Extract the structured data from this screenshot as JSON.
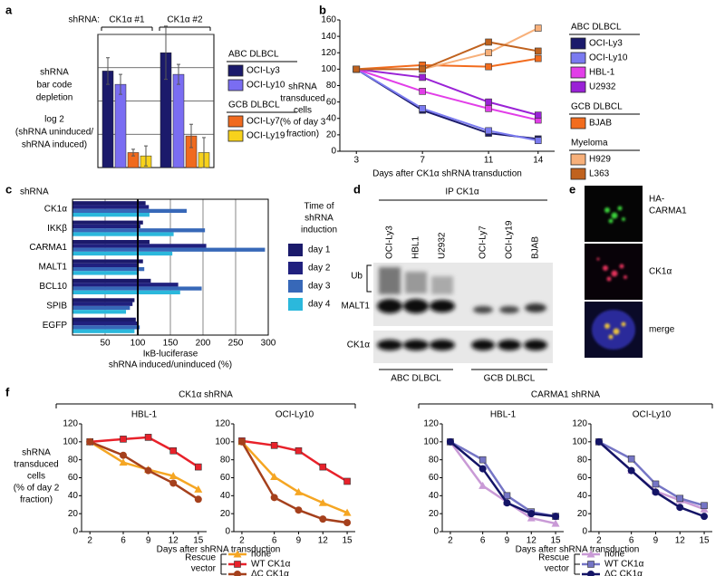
{
  "panel_labels": [
    "a",
    "b",
    "c",
    "d",
    "e",
    "f"
  ],
  "chart_data": [
    {
      "type": "bar",
      "group_header": "shRNA:",
      "categories": [
        "CK1α #1",
        "CK1α #2"
      ],
      "ylabel_lines": [
        "shRNA",
        "bar code",
        "depletion",
        "log 2",
        "(shRNA uninduced/",
        "shRNA induced)"
      ],
      "ylim": [
        0,
        4
      ],
      "gridlines": [
        1,
        2,
        3,
        4
      ],
      "series_groups": [
        {
          "title": "ABC DLBCL",
          "series": [
            {
              "name": "OCI-Ly3",
              "color": "#1b1a6b",
              "values": [
                2.9,
                3.45
              ],
              "errors": [
                0.4,
                0.8
              ]
            },
            {
              "name": "OCI-Ly10",
              "color": "#7a6df2",
              "values": [
                2.5,
                2.8
              ],
              "errors": [
                0.3,
                0.3
              ]
            }
          ]
        },
        {
          "title": "GCB DLBCL",
          "series": [
            {
              "name": "OCI-Ly7",
              "color": "#f06a1e",
              "values": [
                0.45,
                0.95
              ],
              "errors": [
                0.1,
                0.35
              ]
            },
            {
              "name": "OCI-Ly19",
              "color": "#f7d21c",
              "values": [
                0.35,
                0.45
              ],
              "errors": [
                0.3,
                0.45
              ]
            }
          ]
        }
      ]
    },
    {
      "type": "line",
      "x": [
        3,
        7,
        11,
        14
      ],
      "xlim": [
        2,
        15
      ],
      "xticks": [
        3,
        7,
        11,
        14
      ],
      "ylim": [
        0,
        160
      ],
      "yticks": [
        0,
        20,
        40,
        60,
        80,
        100,
        120,
        140,
        160
      ],
      "ylabel_lines": [
        "shRNA",
        "transduced",
        "cells",
        "(% of day 3",
        "fraction)"
      ],
      "xlabel": "Days after CK1α shRNA transduction",
      "series_groups": [
        {
          "title": "ABC DLBCL",
          "series": [
            {
              "name": "OCI-Ly3",
              "color": "#1b1a6b",
              "marker": "square",
              "values": [
                100,
                50,
                22,
                15
              ]
            },
            {
              "name": "OCI-Ly10",
              "color": "#7a7af0",
              "marker": "square",
              "values": [
                100,
                52,
                25,
                13
              ]
            },
            {
              "name": "HBL-1",
              "color": "#e23ee8",
              "marker": "square",
              "values": [
                100,
                73,
                52,
                38
              ]
            },
            {
              "name": "U2932",
              "color": "#9a22d6",
              "marker": "square",
              "values": [
                100,
                90,
                60,
                44
              ]
            }
          ]
        },
        {
          "title": "GCB DLBCL",
          "series": [
            {
              "name": "BJAB",
              "color": "#f26c1e",
              "marker": "square",
              "values": [
                100,
                105,
                103,
                113
              ]
            }
          ]
        },
        {
          "title": "Myeloma",
          "series": [
            {
              "name": "H929",
              "color": "#f7b07a",
              "marker": "square",
              "values": [
                100,
                100,
                120,
                150
              ]
            },
            {
              "name": "L363",
              "color": "#c0621e",
              "marker": "square",
              "values": [
                100,
                100,
                133,
                122
              ]
            }
          ]
        }
      ]
    },
    {
      "type": "bar",
      "orientation": "horizontal",
      "column_header": "shRNA",
      "categories": [
        "CK1α",
        "IKKβ",
        "CARMA1",
        "MALT1",
        "BCL10",
        "SPIB",
        "EGFP"
      ],
      "xlim": [
        0,
        300
      ],
      "xticks": [
        50,
        100,
        150,
        200,
        250,
        300
      ],
      "grid": true,
      "reference_line": 100,
      "xlabel_lines": [
        "IκB-luciferase",
        "shRNA induced/uninduced (%)"
      ],
      "legend_title_lines": [
        "Time of",
        "shRNA",
        "induction"
      ],
      "series": [
        {
          "name": "day 1",
          "color": "#1b1a6b",
          "values": [
            112,
            108,
            118,
            108,
            120,
            95,
            97
          ]
        },
        {
          "name": "day 2",
          "color": "#20207e",
          "values": [
            117,
            104,
            205,
            100,
            162,
            92,
            100
          ]
        },
        {
          "name": "day 3",
          "color": "#3768b8",
          "values": [
            175,
            203,
            295,
            110,
            198,
            88,
            103
          ]
        },
        {
          "name": "day 4",
          "color": "#2bb8dc",
          "values": [
            118,
            155,
            153,
            100,
            165,
            82,
            95
          ]
        }
      ]
    },
    {
      "type": "line",
      "title": "HBL-1",
      "x": [
        2,
        6,
        9,
        12,
        15
      ],
      "xlim": [
        1,
        16
      ],
      "xticks": [
        2,
        6,
        9,
        12,
        15
      ],
      "ylim": [
        0,
        120
      ],
      "yticks": [
        0,
        20,
        40,
        60,
        80,
        100,
        120
      ],
      "ylabel_lines": [
        "shRNA",
        "transduced",
        "cells",
        "(% of day 2",
        "fraction)"
      ],
      "series": [
        {
          "name": "none",
          "color": "#f5a623",
          "marker": "triangle",
          "values": [
            100,
            77,
            69,
            62,
            47
          ]
        },
        {
          "name": "WT CK1α",
          "color": "#e8212a",
          "marker": "square",
          "values": [
            100,
            103,
            105,
            90,
            72
          ]
        },
        {
          "name": "ΔC CK1α",
          "color": "#a5401c",
          "marker": "circle",
          "values": [
            100,
            85,
            68,
            54,
            36
          ]
        }
      ]
    },
    {
      "type": "line",
      "title": "OCI-Ly10",
      "x": [
        2,
        6,
        9,
        12,
        15
      ],
      "xlim": [
        1,
        16
      ],
      "xticks": [
        2,
        6,
        9,
        12,
        15
      ],
      "ylim": [
        0,
        120
      ],
      "yticks": [
        0,
        20,
        40,
        60,
        80,
        100,
        120
      ],
      "series": [
        {
          "name": "none",
          "color": "#f5a623",
          "marker": "triangle",
          "values": [
            100,
            61,
            44,
            32,
            21
          ]
        },
        {
          "name": "WT CK1α",
          "color": "#e8212a",
          "marker": "square",
          "values": [
            101,
            96,
            90,
            72,
            56
          ]
        },
        {
          "name": "ΔC CK1α",
          "color": "#a5401c",
          "marker": "circle",
          "values": [
            100,
            38,
            24,
            14,
            10
          ]
        }
      ]
    },
    {
      "type": "line",
      "title": "HBL-1",
      "x": [
        2,
        6,
        9,
        12,
        15
      ],
      "xlim": [
        1,
        16
      ],
      "xticks": [
        2,
        6,
        9,
        12,
        15
      ],
      "ylim": [
        0,
        120
      ],
      "yticks": [
        0,
        20,
        40,
        60,
        80,
        100,
        120
      ],
      "series": [
        {
          "name": "none",
          "color": "#c99ad6",
          "marker": "triangle",
          "values": [
            100,
            51,
            33,
            15,
            9
          ]
        },
        {
          "name": "WT CK1α",
          "color": "#7575c5",
          "marker": "square",
          "values": [
            100,
            80,
            40,
            22,
            17
          ]
        },
        {
          "name": "ΔC CK1α",
          "color": "#141466",
          "marker": "circle",
          "values": [
            100,
            70,
            32,
            20,
            17
          ]
        }
      ]
    },
    {
      "type": "line",
      "title": "OCI-Ly10",
      "x": [
        2,
        6,
        9,
        12,
        15
      ],
      "xlim": [
        1,
        16
      ],
      "xticks": [
        2,
        6,
        9,
        12,
        15
      ],
      "ylim": [
        0,
        120
      ],
      "yticks": [
        0,
        20,
        40,
        60,
        80,
        100,
        120
      ],
      "series": [
        {
          "name": "none",
          "color": "#c99ad6",
          "marker": "triangle",
          "values": [
            100,
            68,
            45,
            35,
            25
          ]
        },
        {
          "name": "WT CK1α",
          "color": "#7575c5",
          "marker": "square",
          "values": [
            100,
            81,
            53,
            37,
            29
          ]
        },
        {
          "name": "ΔC CK1α",
          "color": "#141466",
          "marker": "circle",
          "values": [
            100,
            68,
            44,
            27,
            17
          ]
        }
      ]
    }
  ],
  "f_groups": [
    {
      "title": "CK1α shRNA",
      "xlabel": "Days after shRNA transduction",
      "legend_title_lines": [
        "Rescue",
        "vector"
      ]
    },
    {
      "title": "CARMA1 shRNA",
      "xlabel": "Days after shRNA transduction",
      "legend_title_lines": [
        "Rescue",
        "vector"
      ]
    }
  ],
  "blot": {
    "header": "IP CK1α",
    "lanes": [
      "OCI-Ly3",
      "HBL1",
      "U2932",
      "OCI-Ly7",
      "OCI-Ly19",
      "BJAB"
    ],
    "row_labels": [
      "Ub",
      "MALT1",
      "CK1α"
    ],
    "group_labels": [
      "ABC DLBCL",
      "GCB DLBCL"
    ]
  },
  "micrograph": {
    "panels": [
      {
        "label_lines": [
          "HA-",
          "CARMA1"
        ]
      },
      {
        "label_lines": [
          "CK1α"
        ]
      },
      {
        "label_lines": [
          "merge"
        ]
      }
    ]
  }
}
